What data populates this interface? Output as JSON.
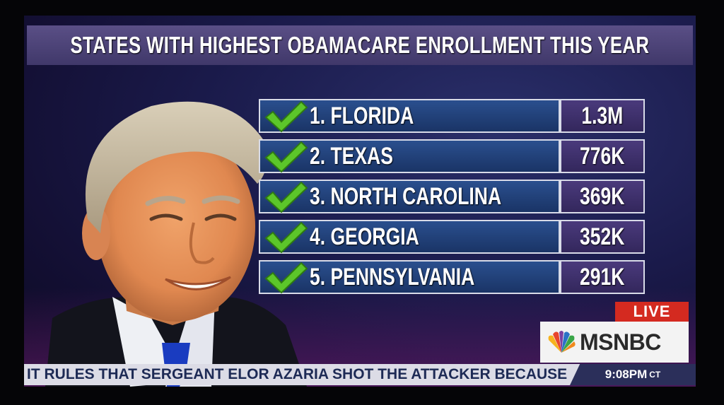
{
  "graphic": {
    "title": "STATES WITH HIGHEST OBAMACARE ENROLLMENT THIS YEAR",
    "rows": [
      {
        "name": "1. FLORIDA",
        "value": "1.3M"
      },
      {
        "name": "2. TEXAS",
        "value": "776K"
      },
      {
        "name": "3. NORTH CAROLINA",
        "value": "369K"
      },
      {
        "name": "4. GEORGIA",
        "value": "352K"
      },
      {
        "name": "5. PENNSYLVANIA",
        "value": "291K"
      }
    ]
  },
  "branding": {
    "live_label": "LIVE",
    "network": "MSNBC"
  },
  "ticker": {
    "text": "IT RULES THAT SERGEANT ELOR AZARIA SHOT THE ATTACKER BECAUSE H",
    "time": "9:08PM",
    "timezone": "CT"
  },
  "colors": {
    "check": "#5cc62a",
    "live": "#d42a20",
    "title_bar": "#4d4478",
    "row_name_bg": "#1f3d78",
    "row_value_bg": "#3d2f6e"
  },
  "icons": {
    "check": "check-icon",
    "logo": "peacock-logo-icon"
  }
}
